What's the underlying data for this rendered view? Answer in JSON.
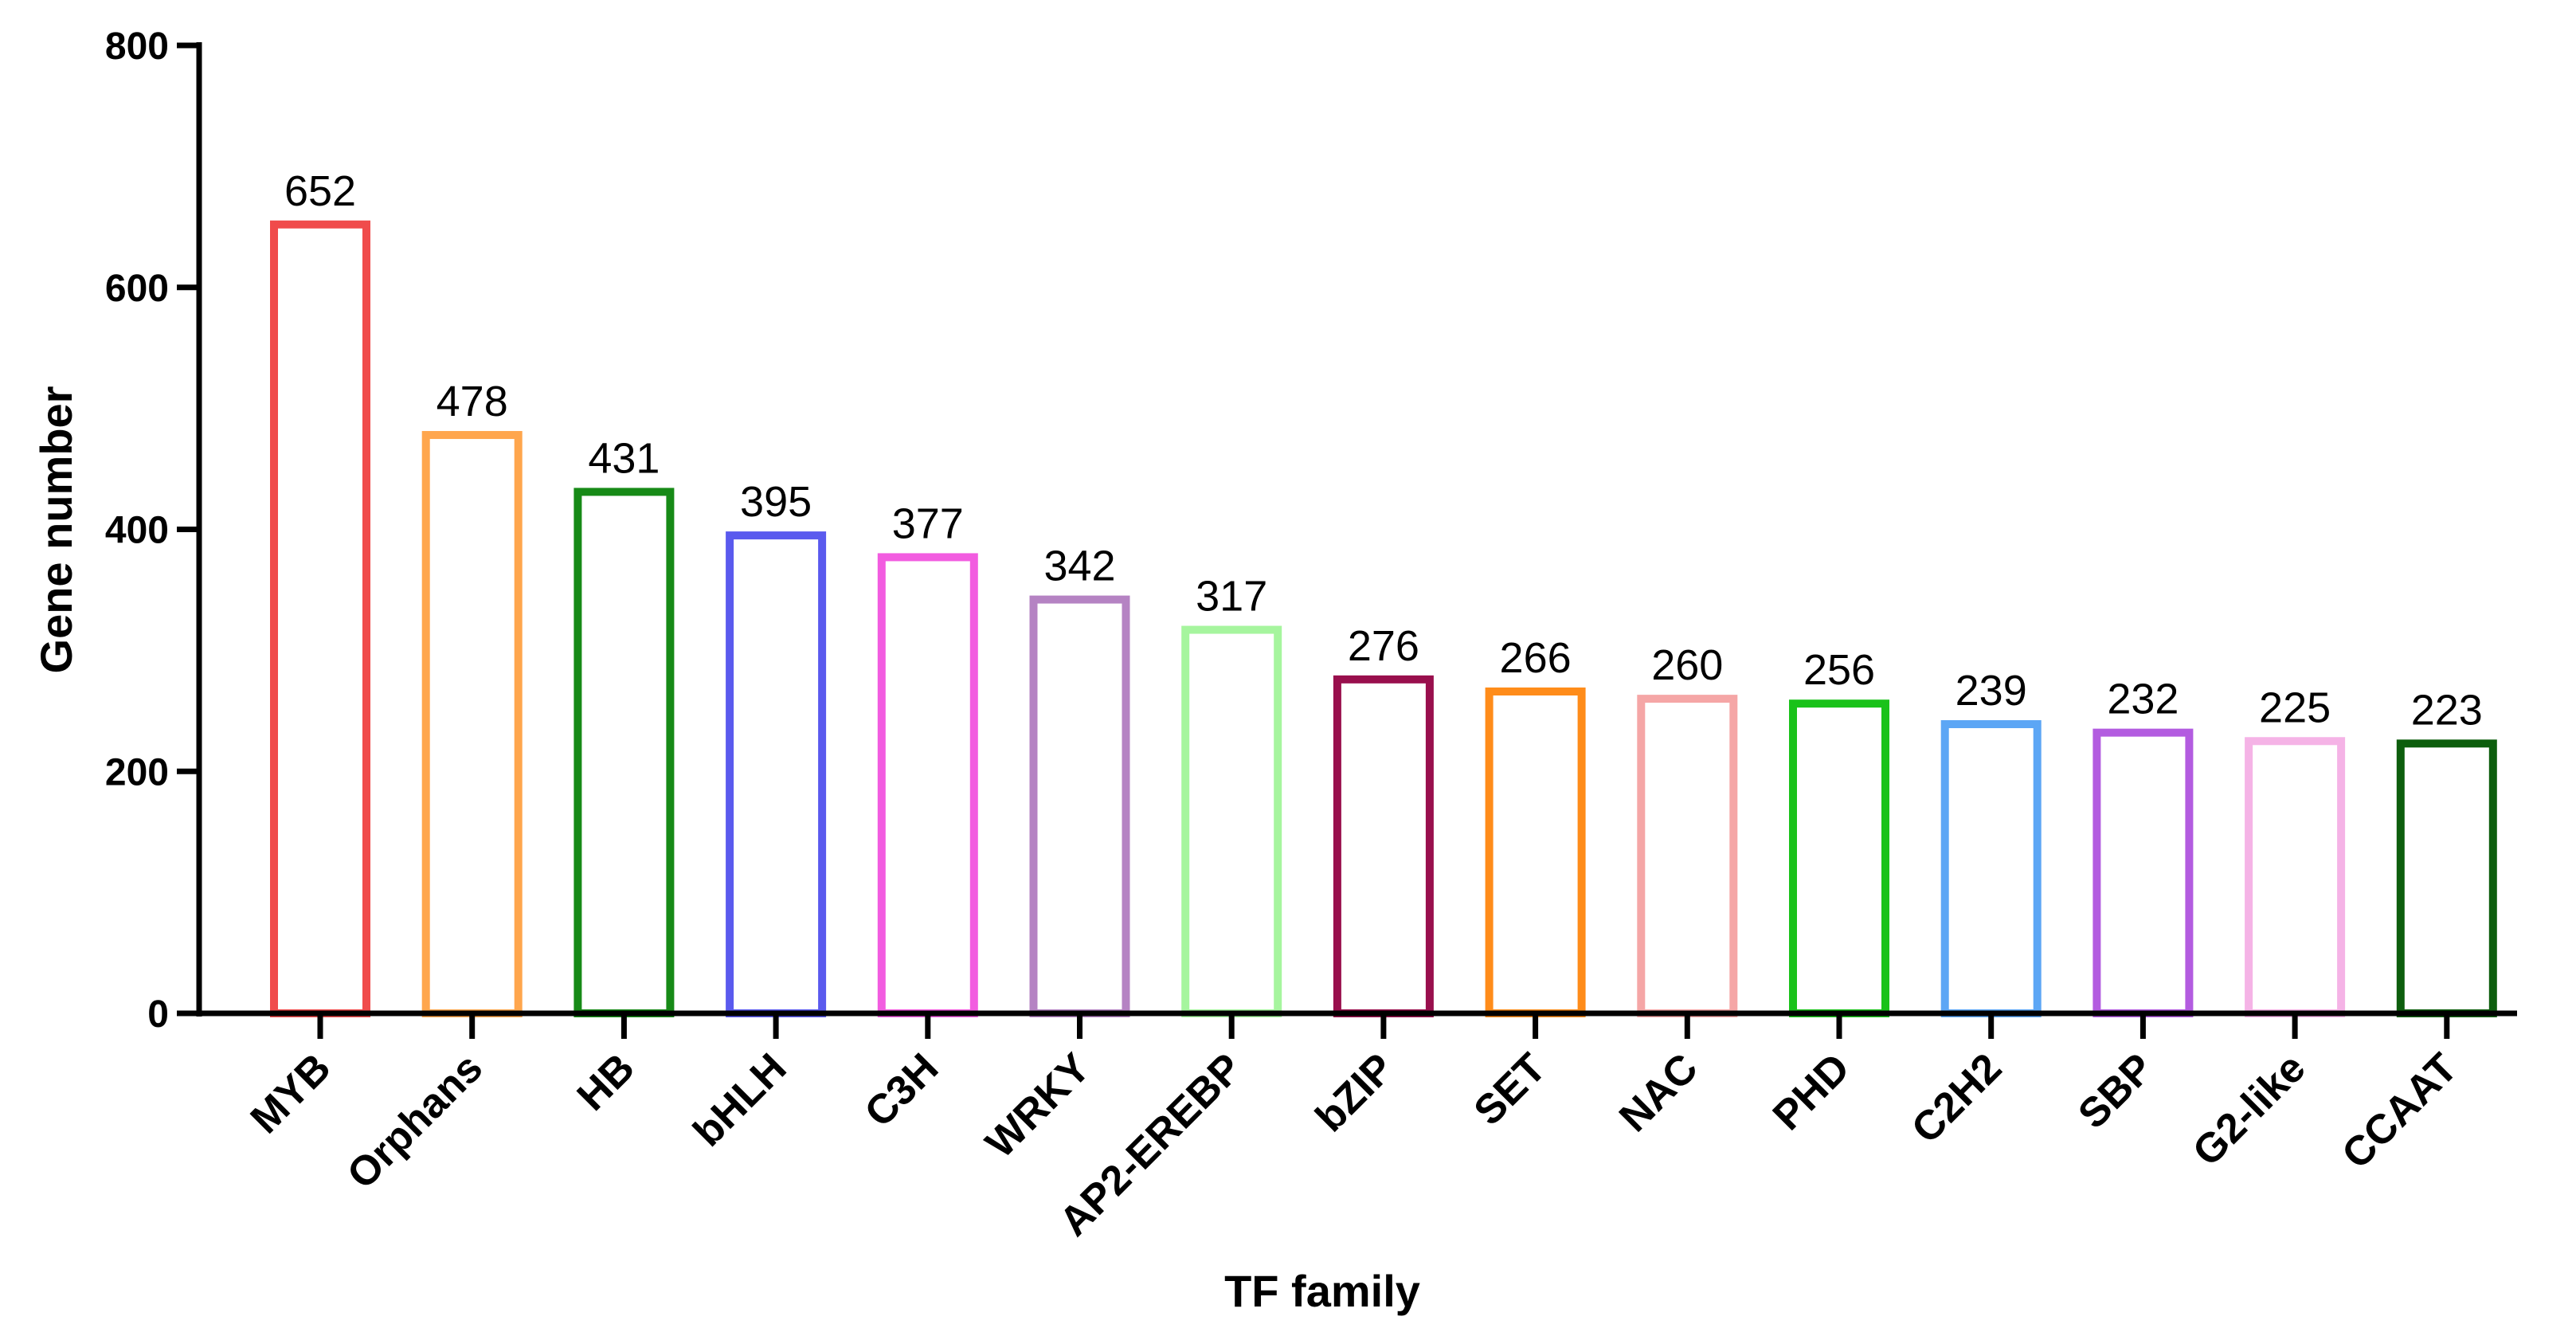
{
  "chart_data": {
    "type": "bar",
    "title": "",
    "xlabel": "TF family",
    "ylabel": "Gene number",
    "ylim": [
      0,
      800
    ],
    "yticks": [
      0,
      200,
      400,
      600,
      800
    ],
    "grid": false,
    "legend": "none",
    "categories": [
      "MYB",
      "Orphans",
      "HB",
      "bHLH",
      "C3H",
      "WRKY",
      "AP2-EREBP",
      "bZIP",
      "SET",
      "NAC",
      "PHD",
      "C2H2",
      "SBP",
      "G2-like",
      "CCAAT"
    ],
    "values": [
      652,
      478,
      431,
      395,
      377,
      342,
      317,
      276,
      266,
      260,
      256,
      239,
      232,
      225,
      223
    ],
    "data_labels": [
      "652",
      "478",
      "431",
      "395",
      "377",
      "342",
      "317",
      "276",
      "266",
      "260",
      "256",
      "239",
      "232",
      "225",
      "223"
    ],
    "colors": [
      "#f04b4b",
      "#ffa64d",
      "#178a17",
      "#5a5aee",
      "#f25ce0",
      "#b583c3",
      "#a6f59e",
      "#990f4d",
      "#ff8c1a",
      "#f5a6a6",
      "#1ac21a",
      "#5ca6f5",
      "#b35ce0",
      "#f5b3e6",
      "#0d5e0d"
    ]
  }
}
